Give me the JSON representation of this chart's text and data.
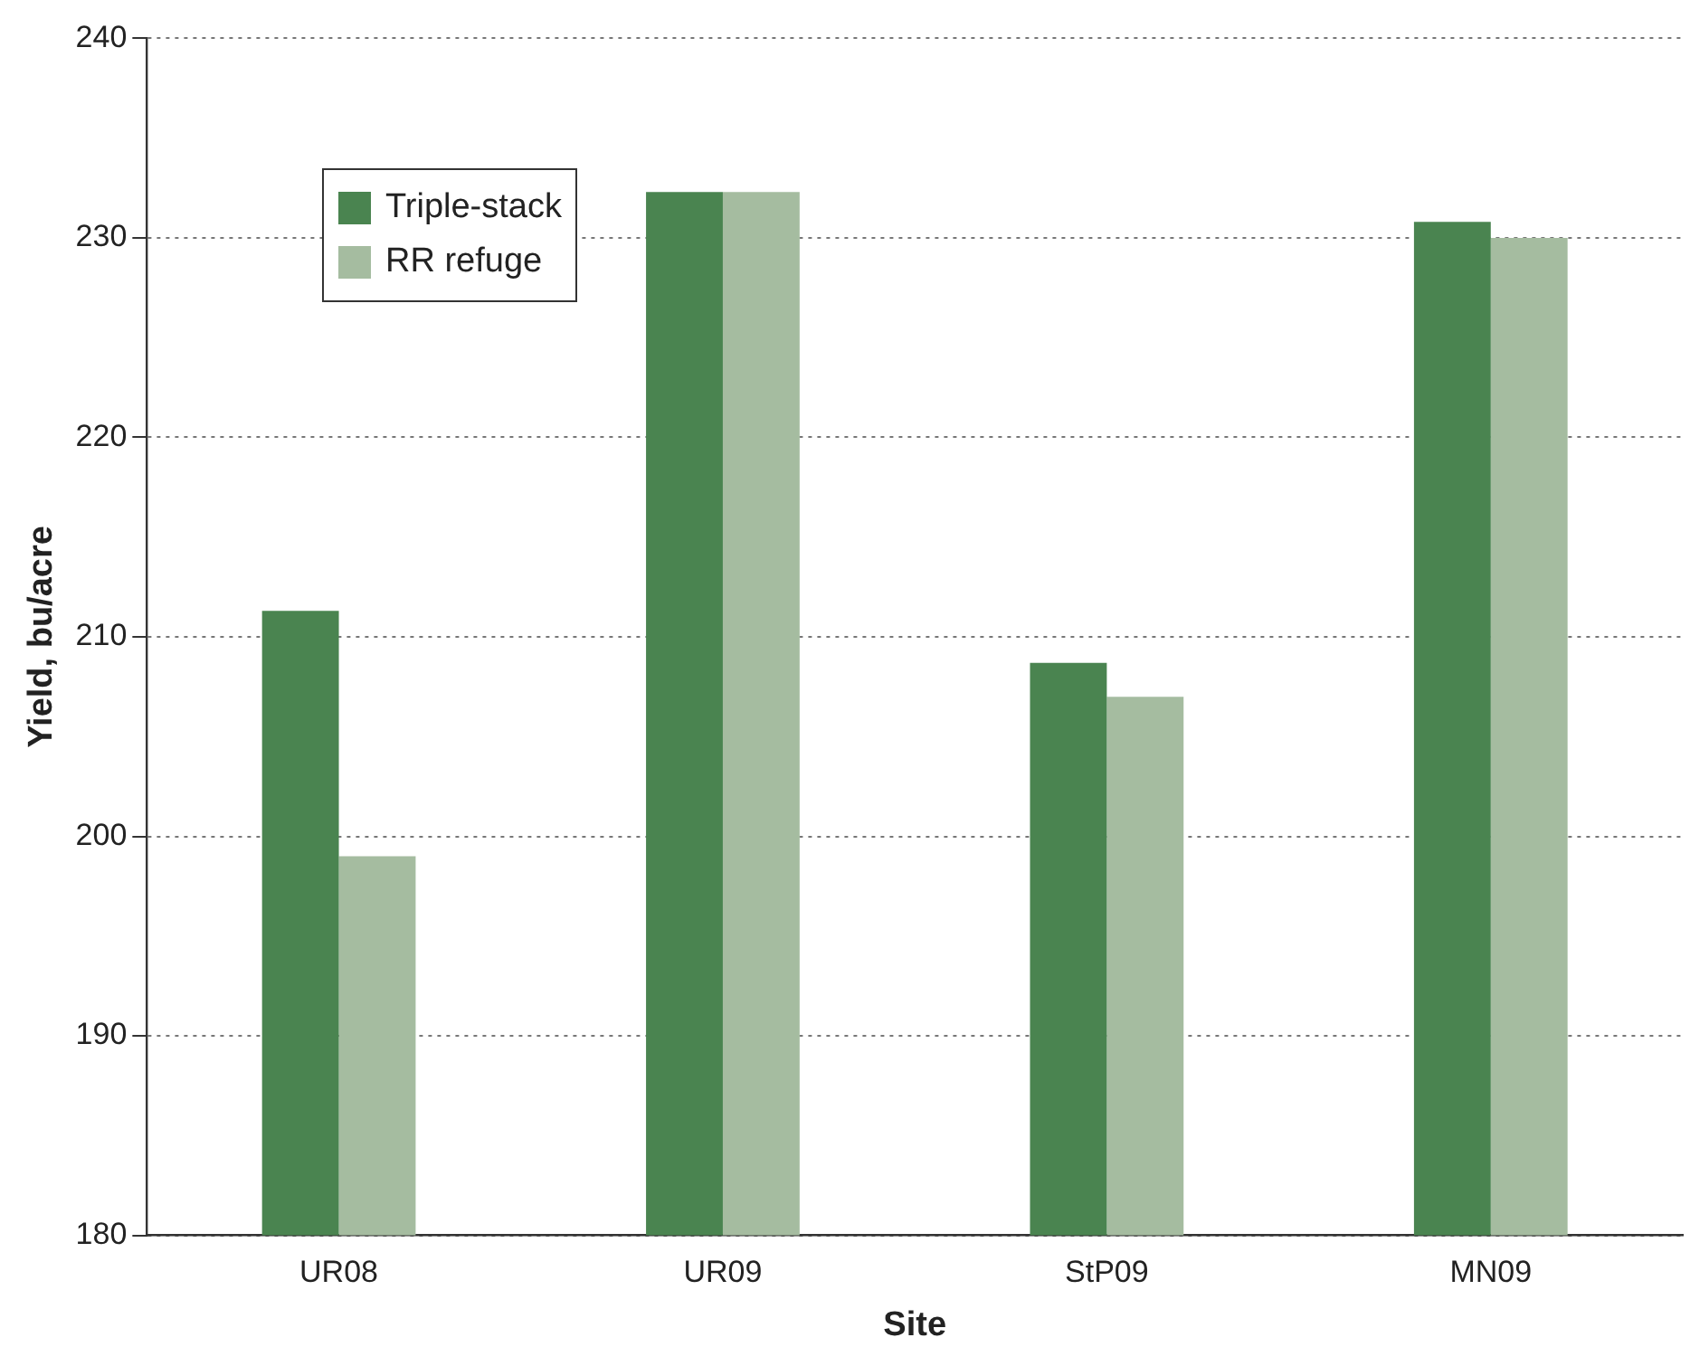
{
  "chart_data": {
    "type": "bar",
    "xlabel": "Site",
    "ylabel": "Yield, bu/acre",
    "categories": [
      "UR08",
      "UR09",
      "StP09",
      "MN09"
    ],
    "series": [
      {
        "name": "Triple-stack",
        "color": "#4a8450",
        "values": [
          211.3,
          232.3,
          208.7,
          230.8
        ]
      },
      {
        "name": "RR refuge",
        "color": "#a5bca0",
        "values": [
          199.0,
          232.3,
          207.0,
          230.0
        ]
      }
    ],
    "ylim": [
      180,
      240
    ],
    "yticks": [
      180,
      190,
      200,
      210,
      220,
      230,
      240
    ],
    "grid": "y",
    "legend": "top left"
  }
}
